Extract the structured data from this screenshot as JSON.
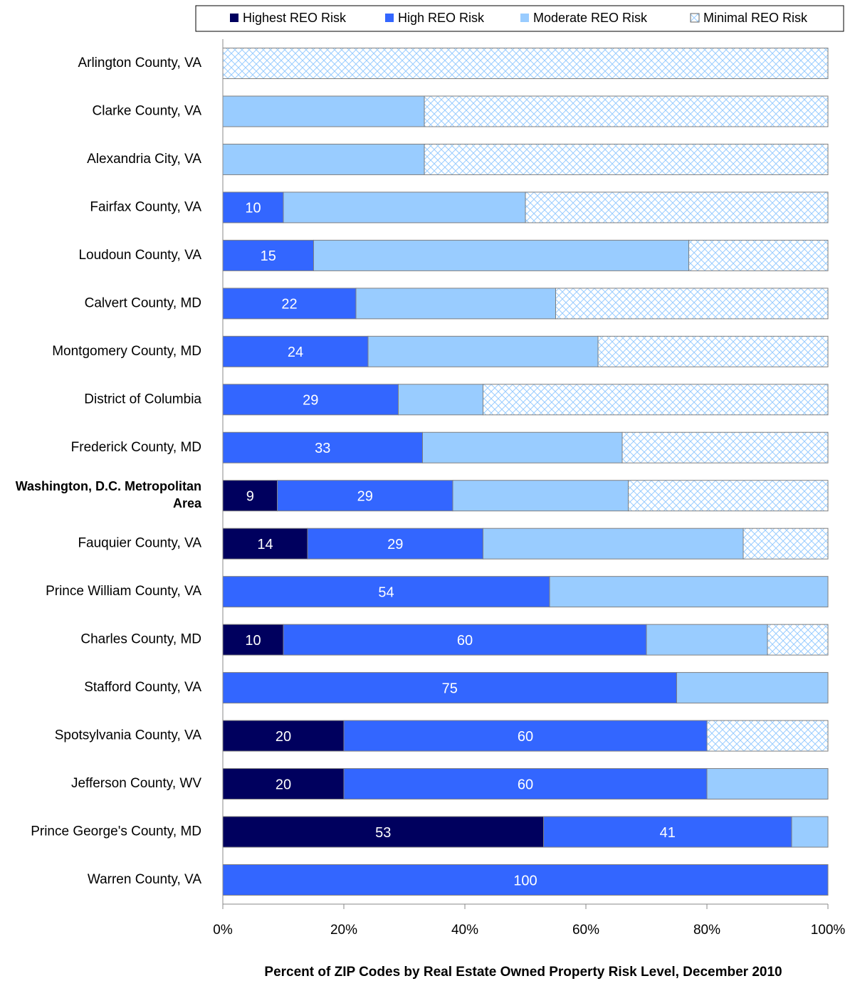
{
  "chart_data": {
    "type": "stacked-barh",
    "title": "Percent of ZIP Codes by Real Estate Owned Property Risk Level, December 2010",
    "categories": [
      "Arlington County, VA",
      "Clarke County, VA",
      "Alexandria City, VA",
      "Fairfax County, VA",
      "Loudoun County, VA",
      "Calvert County, MD",
      "Montgomery County, MD",
      "District of Columbia",
      "Frederick County, MD",
      "Washington, D.C. Metropolitan Area",
      "Fauquier County, VA",
      "Prince William County, VA",
      "Charles County, MD",
      "Stafford County, VA",
      "Spotsylvania County, VA",
      "Jefferson County, WV",
      "Prince George's County, MD",
      "Warren County, VA"
    ],
    "bold_category": 9,
    "series": [
      {
        "name": "Highest REO Risk",
        "color": "#00005e",
        "pattern": "solid",
        "labels": true,
        "values": [
          0,
          0,
          0,
          0,
          0,
          0,
          0,
          0,
          0,
          9,
          14,
          0,
          10,
          0,
          20,
          20,
          53,
          0
        ]
      },
      {
        "name": "High REO Risk",
        "color": "#3366ff",
        "pattern": "solid",
        "labels": true,
        "values": [
          0,
          0,
          0,
          10,
          15,
          22,
          24,
          29,
          33,
          29,
          29,
          54,
          60,
          75,
          60,
          60,
          41,
          100
        ]
      },
      {
        "name": "Moderate REO Risk",
        "color": "#99ccff",
        "pattern": "solid",
        "labels": false,
        "values": [
          0,
          33.3,
          33.3,
          40,
          62,
          33,
          38,
          14,
          33,
          29,
          43,
          46,
          20,
          25,
          0,
          20,
          6,
          0
        ]
      },
      {
        "name": "Minimal REO Risk",
        "color": "#99ccff",
        "pattern": "crosshatch",
        "labels": false,
        "values": [
          100,
          66.7,
          66.7,
          50,
          23,
          45,
          38,
          57,
          34,
          33,
          14,
          0,
          10,
          0,
          20,
          0,
          0,
          0
        ]
      }
    ],
    "xlim": [
      0,
      100
    ],
    "xticks": [
      {
        "value": 0,
        "label": "0%"
      },
      {
        "value": 20,
        "label": "20%"
      },
      {
        "value": 40,
        "label": "40%"
      },
      {
        "value": 60,
        "label": "60%"
      },
      {
        "value": 80,
        "label": "80%"
      },
      {
        "value": 100,
        "label": "100%"
      }
    ],
    "legend": "top"
  }
}
